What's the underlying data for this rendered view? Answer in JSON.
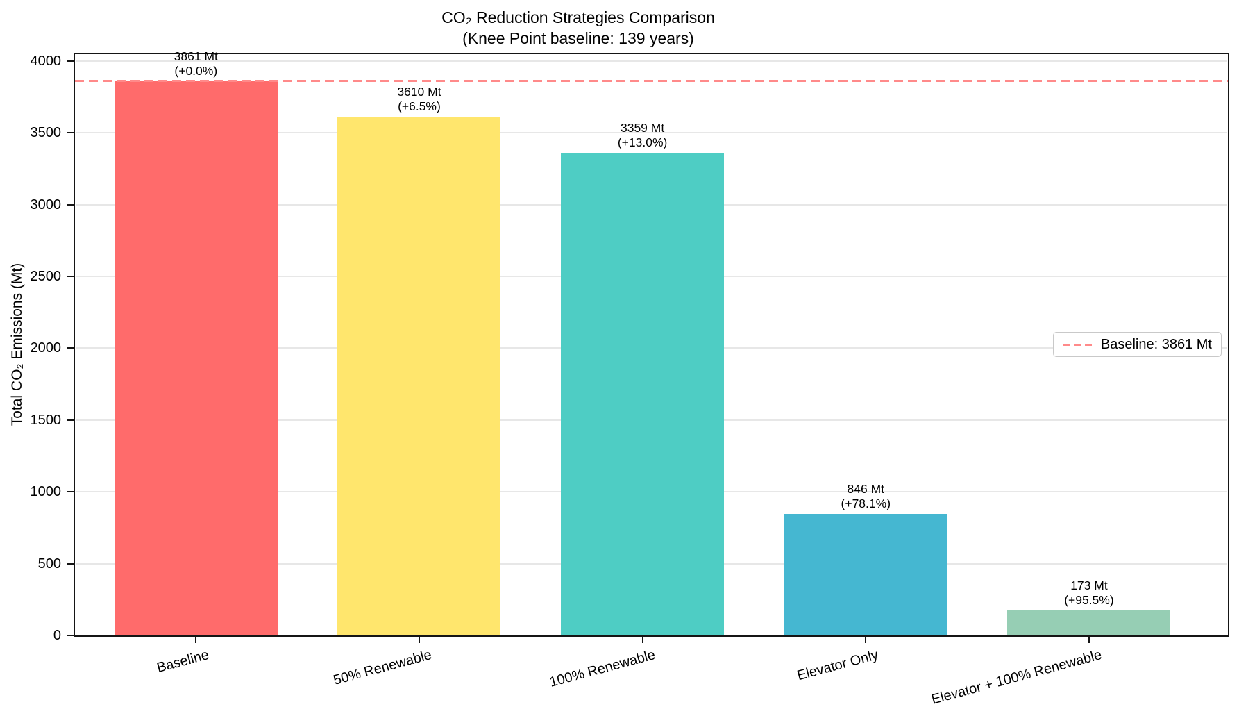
{
  "chart_data": {
    "type": "bar",
    "title": "CO₂ Reduction Strategies Comparison",
    "subtitle": "(Knee Point baseline: 139 years)",
    "categories": [
      "Baseline",
      "50% Renewable",
      "100% Renewable",
      "Elevator Only",
      "Elevator + 100% Renewable"
    ],
    "values": [
      3861,
      3610,
      3359,
      846,
      173
    ],
    "value_labels": [
      "3861 Mt",
      "3610 Mt",
      "3359 Mt",
      "846 Mt",
      "173 Mt"
    ],
    "pct_labels": [
      "(+0.0%)",
      "(+6.5%)",
      "(+13.0%)",
      "(+78.1%)",
      "(+95.5%)"
    ],
    "bar_colors": [
      "#ff6b6b",
      "#ffe66d",
      "#4ecdc4",
      "#45b7d1",
      "#96ceb4"
    ],
    "ylabel": "Total CO₂ Emissions (Mt)",
    "yticks": [
      0,
      500,
      1000,
      1500,
      2000,
      2500,
      3000,
      3500,
      4000
    ],
    "ylim": [
      0,
      4052
    ],
    "grid": true,
    "legend_position": "center-right",
    "baseline_line": {
      "value": 3861,
      "color": "#ff8a8a",
      "style": "dashed"
    },
    "legend": {
      "label": "Baseline: 3861 Mt",
      "swatch_color": "#ff8a8a"
    }
  }
}
